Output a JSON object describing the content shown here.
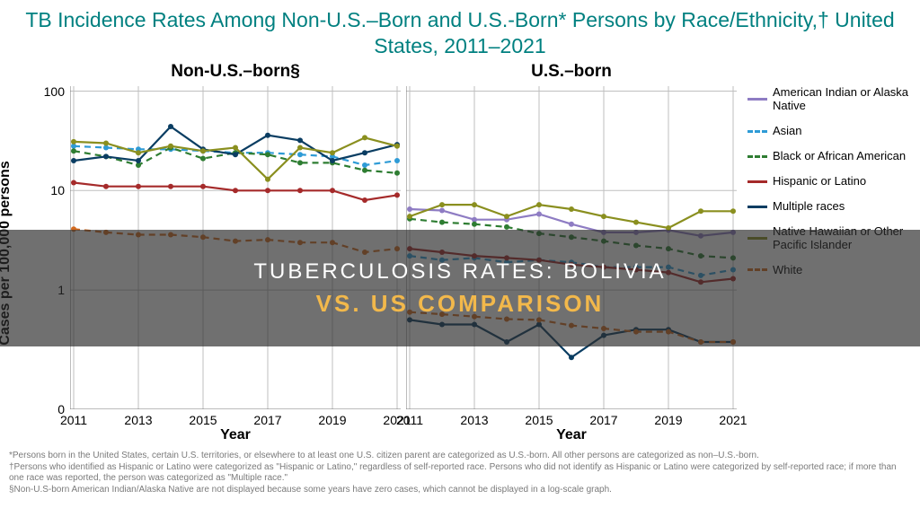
{
  "title": {
    "text": "TB Incidence Rates Among Non-U.S.–Born and U.S.-Born* Persons by Race/Ethnicity,† United States, 2011–2021",
    "color": "#008080",
    "fontsize": 23
  },
  "y_axis": {
    "label": "Cases per 100,000 persons",
    "scale": "log",
    "ticks": [
      0,
      1,
      10,
      100
    ],
    "range_log": [
      -1.2,
      2.05
    ]
  },
  "x_axis": {
    "label": "Year",
    "years": [
      2011,
      2012,
      2013,
      2014,
      2015,
      2016,
      2017,
      2018,
      2019,
      2020,
      2021
    ],
    "tick_labels": [
      2011,
      2013,
      2015,
      2017,
      2019,
      2021
    ]
  },
  "panels": [
    {
      "key": "nonus",
      "title": "Non-U.S.–born§"
    },
    {
      "key": "us",
      "title": "U.S.–born"
    }
  ],
  "series": [
    {
      "id": "aian",
      "label": "American Indian or Alaska Native",
      "color": "#8e7cc3",
      "dash": false
    },
    {
      "id": "asian",
      "label": "Asian",
      "color": "#2e9bd6",
      "dash": true
    },
    {
      "id": "black",
      "label": "Black or African American",
      "color": "#2e7d32",
      "dash": true
    },
    {
      "id": "hisp",
      "label": "Hispanic or Latino",
      "color": "#a52a2a",
      "dash": false
    },
    {
      "id": "multi",
      "label": "Multiple races",
      "color": "#0a3d62",
      "dash": false
    },
    {
      "id": "nhpi",
      "label": "Native Hawaiian or Other Pacific Islander",
      "color": "#8a8f1f",
      "dash": false
    },
    {
      "id": "white",
      "label": "White",
      "color": "#d2691e",
      "dash": true
    }
  ],
  "data": {
    "nonus": {
      "aian": null,
      "asian": [
        28,
        27,
        26,
        26,
        25,
        24,
        24,
        23,
        22,
        18,
        20
      ],
      "black": [
        25,
        22,
        18,
        27,
        21,
        24,
        23,
        19,
        19,
        16,
        15
      ],
      "hisp": [
        12,
        11,
        11,
        11,
        11,
        10,
        10,
        10,
        10,
        8,
        9
      ],
      "multi": [
        20,
        22,
        20,
        44,
        26,
        23,
        36,
        32,
        20,
        24,
        29
      ],
      "nhpi": [
        31,
        30,
        24,
        28,
        25,
        27,
        13,
        27,
        24,
        34,
        28
      ],
      "white": [
        4.1,
        3.8,
        3.6,
        3.6,
        3.4,
        3.1,
        3.2,
        3.0,
        3.0,
        2.4,
        2.6
      ]
    },
    "us": {
      "aian": [
        6.5,
        6.3,
        5.1,
        5.1,
        5.8,
        4.6,
        3.8,
        3.8,
        4.0,
        3.5,
        3.8
      ],
      "asian": [
        2.2,
        2.0,
        2.1,
        1.9,
        2.0,
        1.9,
        1.7,
        1.7,
        1.7,
        1.4,
        1.6
      ],
      "black": [
        5.2,
        4.8,
        4.6,
        4.3,
        3.7,
        3.4,
        3.1,
        2.8,
        2.6,
        2.2,
        2.1
      ],
      "hisp": [
        2.6,
        2.4,
        2.2,
        2.1,
        2.0,
        1.8,
        1.7,
        1.6,
        1.5,
        1.2,
        1.3
      ],
      "multi": [
        0.5,
        0.45,
        0.45,
        0.3,
        0.45,
        0.21,
        0.35,
        0.4,
        0.4,
        0.3,
        0.3
      ],
      "nhpi": [
        5.5,
        7.2,
        7.2,
        5.5,
        7.2,
        6.5,
        5.5,
        4.8,
        4.2,
        6.2,
        6.2
      ],
      "white": [
        0.6,
        0.57,
        0.54,
        0.51,
        0.5,
        0.44,
        0.41,
        0.38,
        0.38,
        0.3,
        0.3
      ]
    }
  },
  "style": {
    "line_width": 2.2,
    "marker_radius": 3.0,
    "grid_color": "#bfbfbf",
    "axis_color": "#7a7a7a",
    "background": "#ffffff",
    "dash_pattern": "7,5"
  },
  "legend": {
    "fontsize": 13
  },
  "footnotes": [
    "*Persons born in the United States, certain U.S. territories, or elsewhere to at least one U.S. citizen parent are categorized as U.S.-born. All other persons are categorized as non–U.S.-born.",
    "†Persons who identified as Hispanic or Latino were categorized as \"Hispanic or Latino,\" regardless of self-reported race. Persons who did not identify as Hispanic or Latino were categorized by self-reported race; if more than one race was reported, the person was categorized as \"Multiple race.\"",
    "§Non-U.S-born American Indian/Alaska Native are not displayed because some years have zero cases, which cannot be displayed in a log-scale graph."
  ],
  "overlay": {
    "line1": "TUBERCULOSIS RATES: BOLIVIA",
    "line2": "VS. US COMPARISON",
    "line2_color": "#f2b84b"
  }
}
